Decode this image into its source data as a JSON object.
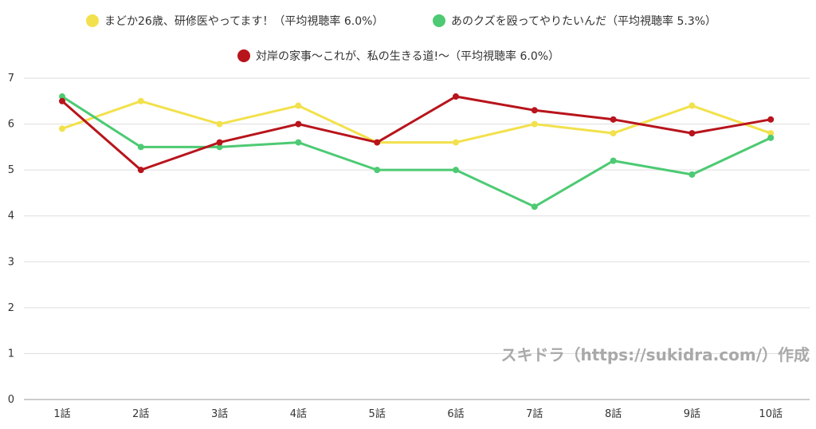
{
  "chart_data": {
    "type": "line",
    "title": "",
    "xlabel": "",
    "ylabel": "",
    "ylim": [
      0,
      7
    ],
    "yticks": [
      0,
      1,
      2,
      3,
      4,
      5,
      6,
      7
    ],
    "grid": true,
    "legend_position": "top-center",
    "categories": [
      "1話",
      "2話",
      "3話",
      "4話",
      "5話",
      "6話",
      "7話",
      "8話",
      "9話",
      "10話"
    ],
    "series": [
      {
        "name": "まどか26歳、研修医やってます！（平均視聴率 6.0%）",
        "color": "#f2e14c",
        "values": [
          5.9,
          6.5,
          6.0,
          6.4,
          5.6,
          5.6,
          6.0,
          5.8,
          6.4,
          5.8
        ]
      },
      {
        "name": "あのクズを殴ってやりたいんだ（平均視聴率 5.3%）",
        "color": "#4dca73",
        "values": [
          6.6,
          5.5,
          5.5,
          5.6,
          5.0,
          5.0,
          4.2,
          5.2,
          4.9,
          5.7
        ]
      },
      {
        "name": "対岸の家事〜これが、私の生きる道!〜（平均視聴率 6.0%）",
        "color": "#b8141c",
        "values": [
          6.5,
          5.0,
          5.6,
          6.0,
          5.6,
          6.6,
          6.3,
          6.1,
          5.8,
          6.1
        ]
      }
    ]
  },
  "watermark": "スキドラ（https://sukidra.com/）作成"
}
